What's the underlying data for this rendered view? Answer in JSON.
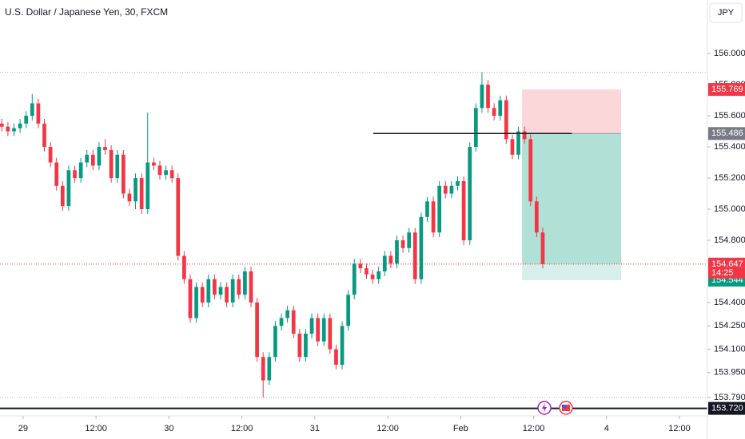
{
  "chart_data": {
    "type": "candlestick",
    "title": "U.S. Dollar / Japanese Yen, 30, FXCM",
    "currency": "JPY",
    "x": [
      -3.5,
      -2.5,
      -1.5,
      -0.5,
      0.5,
      1.5,
      2.5,
      3.5,
      4.5,
      5.5,
      6.5,
      7.5,
      8.5,
      9.5,
      10.5,
      11.5,
      12.5,
      13.5,
      14.5,
      15.5,
      16.5,
      17.5,
      18.5,
      19.5,
      20.5,
      21.5,
      22.5,
      23.5,
      24.5,
      25.5,
      26.5,
      27.5,
      28.5,
      29.5,
      30.5,
      31.5,
      32.5,
      33.5,
      34.5,
      35.5,
      36.5,
      37.5,
      38.5,
      39.5,
      40.5,
      41.5,
      42.5,
      43.5,
      44.5,
      45.5,
      46.5,
      47.5,
      48.5,
      49.5,
      50.5,
      51.5,
      52.5,
      53.5,
      54.5,
      55.5,
      56.5,
      57.5,
      58.5,
      59.5,
      60.5,
      61.5,
      62.5,
      63.5,
      64.5,
      65.5,
      66.5,
      67.5,
      68.5,
      69.5,
      70.5,
      71.5,
      72.5,
      73.5,
      74.5,
      75.5,
      76.5,
      77.5,
      78.5,
      79.5,
      80.5,
      81.5,
      82.5,
      83.5,
      84.5,
      85.5
    ],
    "open": [
      155.55,
      155.53,
      155.5,
      155.52,
      155.55,
      155.6,
      155.68,
      155.55,
      155.4,
      155.3,
      155.15,
      155.02,
      155.25,
      155.2,
      155.3,
      155.35,
      155.28,
      155.4,
      155.38,
      155.2,
      155.35,
      155.1,
      155.05,
      155.2,
      155,
      155.3,
      155.28,
      155.22,
      155.25,
      155.2,
      154.7,
      154.55,
      154.3,
      154.5,
      154.4,
      154.55,
      154.45,
      154.5,
      154.4,
      154.55,
      154.45,
      154.6,
      154.4,
      154.05,
      153.9,
      154.05,
      154.25,
      154.3,
      154.35,
      154.2,
      154.05,
      154.2,
      154.3,
      154.15,
      154.3,
      154.1,
      154,
      154.25,
      154.45,
      154.65,
      154.62,
      154.58,
      154.55,
      154.6,
      154.7,
      154.65,
      154.8,
      154.75,
      154.85,
      154.55,
      154.95,
      155.05,
      154.85,
      155.15,
      155.1,
      155.15,
      155.18,
      154.8,
      155.4,
      155.65,
      155.8,
      155.65,
      155.6,
      155.7,
      155.45,
      155.35,
      155.5,
      155.45,
      155.05,
      154.85
    ],
    "high": [
      155.58,
      155.56,
      155.55,
      155.58,
      155.63,
      155.74,
      155.71,
      155.58,
      155.43,
      155.33,
      155.18,
      155.28,
      155.28,
      155.33,
      155.38,
      155.38,
      155.43,
      155.45,
      155.41,
      155.38,
      155.38,
      155.13,
      155.23,
      155.23,
      155.62,
      155.33,
      155.31,
      155.28,
      155.28,
      155.23,
      154.73,
      154.58,
      154.53,
      154.53,
      154.58,
      154.58,
      154.53,
      154.53,
      154.58,
      154.58,
      154.63,
      154.63,
      154.43,
      154.08,
      154.08,
      154.28,
      154.33,
      154.38,
      154.38,
      154.23,
      154.23,
      154.33,
      154.33,
      154.33,
      154.33,
      154.13,
      154.28,
      154.48,
      154.68,
      154.68,
      154.65,
      154.61,
      154.63,
      154.73,
      154.73,
      154.83,
      154.83,
      154.88,
      154.88,
      154.98,
      155.08,
      155.08,
      155.18,
      155.18,
      155.18,
      155.21,
      155.21,
      155.43,
      155.68,
      155.88,
      155.83,
      155.68,
      155.73,
      155.73,
      155.48,
      155.53,
      155.53,
      155.48,
      155.08,
      154.88
    ],
    "low": [
      155.5,
      155.47,
      155.47,
      155.49,
      155.52,
      155.57,
      155.52,
      155.37,
      155.27,
      155.12,
      154.99,
      154.99,
      155.17,
      155.17,
      155.27,
      155.25,
      155.25,
      155.35,
      155.17,
      155.17,
      155.07,
      155.02,
      155,
      154.97,
      154.97,
      155.25,
      155.19,
      155.19,
      155.17,
      154.67,
      154.52,
      154.27,
      154.27,
      154.37,
      154.37,
      154.42,
      154.42,
      154.37,
      154.37,
      154.42,
      154.42,
      154.37,
      154.02,
      153.79,
      153.87,
      154.02,
      154.22,
      154.27,
      154.17,
      154.02,
      154.02,
      154.17,
      154.12,
      154.12,
      154.07,
      153.97,
      153.97,
      154.22,
      154.42,
      154.59,
      154.55,
      154.52,
      154.52,
      154.57,
      154.62,
      154.62,
      154.72,
      154.72,
      154.52,
      154.52,
      154.92,
      154.82,
      154.82,
      155.07,
      155.07,
      155.12,
      154.77,
      154.77,
      155.37,
      155.62,
      155.62,
      155.57,
      155.57,
      155.42,
      155.32,
      155.32,
      155.42,
      155.02,
      154.82,
      154.62
    ],
    "close": [
      155.53,
      155.5,
      155.52,
      155.55,
      155.6,
      155.68,
      155.55,
      155.4,
      155.3,
      155.15,
      155.02,
      155.25,
      155.2,
      155.3,
      155.35,
      155.28,
      155.4,
      155.38,
      155.2,
      155.35,
      155.1,
      155.05,
      155.2,
      155,
      155.3,
      155.28,
      155.22,
      155.25,
      155.2,
      154.7,
      154.55,
      154.3,
      154.5,
      154.4,
      154.55,
      154.45,
      154.5,
      154.4,
      154.55,
      154.45,
      154.6,
      154.4,
      154.05,
      153.9,
      154.05,
      154.25,
      154.3,
      154.35,
      154.2,
      154.05,
      154.2,
      154.3,
      154.15,
      154.3,
      154.1,
      154,
      154.25,
      154.45,
      154.65,
      154.62,
      154.58,
      154.55,
      154.6,
      154.7,
      154.65,
      154.8,
      154.75,
      154.85,
      154.55,
      154.95,
      155.05,
      154.85,
      155.15,
      155.1,
      155.15,
      155.18,
      154.8,
      155.4,
      155.65,
      155.8,
      155.65,
      155.6,
      155.7,
      155.45,
      155.35,
      155.5,
      155.45,
      155.05,
      154.85,
      154.647
    ],
    "up_color": "#089981",
    "down_color": "#f23645",
    "xlim": [
      -3.8,
      112.6
    ],
    "xticks": [
      {
        "value": 0,
        "label": "29"
      },
      {
        "value": 12,
        "label": "12:00"
      },
      {
        "value": 24,
        "label": "30"
      },
      {
        "value": 36,
        "label": "12:00"
      },
      {
        "value": 48,
        "label": "31"
      },
      {
        "value": 60,
        "label": "12:00"
      },
      {
        "value": 72,
        "label": "Feb"
      },
      {
        "value": 84,
        "label": "12:00"
      },
      {
        "value": 96,
        "label": "4"
      },
      {
        "value": 108,
        "label": "12:00"
      }
    ],
    "ylim": [
      153.677,
      156.344
    ],
    "yticks": [
      {
        "value": 156,
        "label": "156.000"
      },
      {
        "value": 155.8,
        "label": "155.800"
      },
      {
        "value": 155.6,
        "label": "155.600"
      },
      {
        "value": 155.4,
        "label": "155.400"
      },
      {
        "value": 155.2,
        "label": "155.200"
      },
      {
        "value": 155,
        "label": "155.000"
      },
      {
        "value": 154.8,
        "label": "154.800"
      },
      {
        "value": 154.4,
        "label": "154.400"
      },
      {
        "value": 154.25,
        "label": "154.250"
      },
      {
        "value": 154.1,
        "label": "154.100"
      },
      {
        "value": 153.95,
        "label": "153.950"
      },
      {
        "value": 153.79,
        "label": "153.790"
      }
    ],
    "position": {
      "stop": 155.769,
      "entry": 155.486,
      "target": 154.544,
      "start": 82.1,
      "end": 98.4
    },
    "entry_line": {
      "start": 57.6,
      "end": 90.3
    },
    "countdown": "14:25",
    "horizontal_ray": {
      "value": 153.72,
      "label": "153.720"
    }
  }
}
